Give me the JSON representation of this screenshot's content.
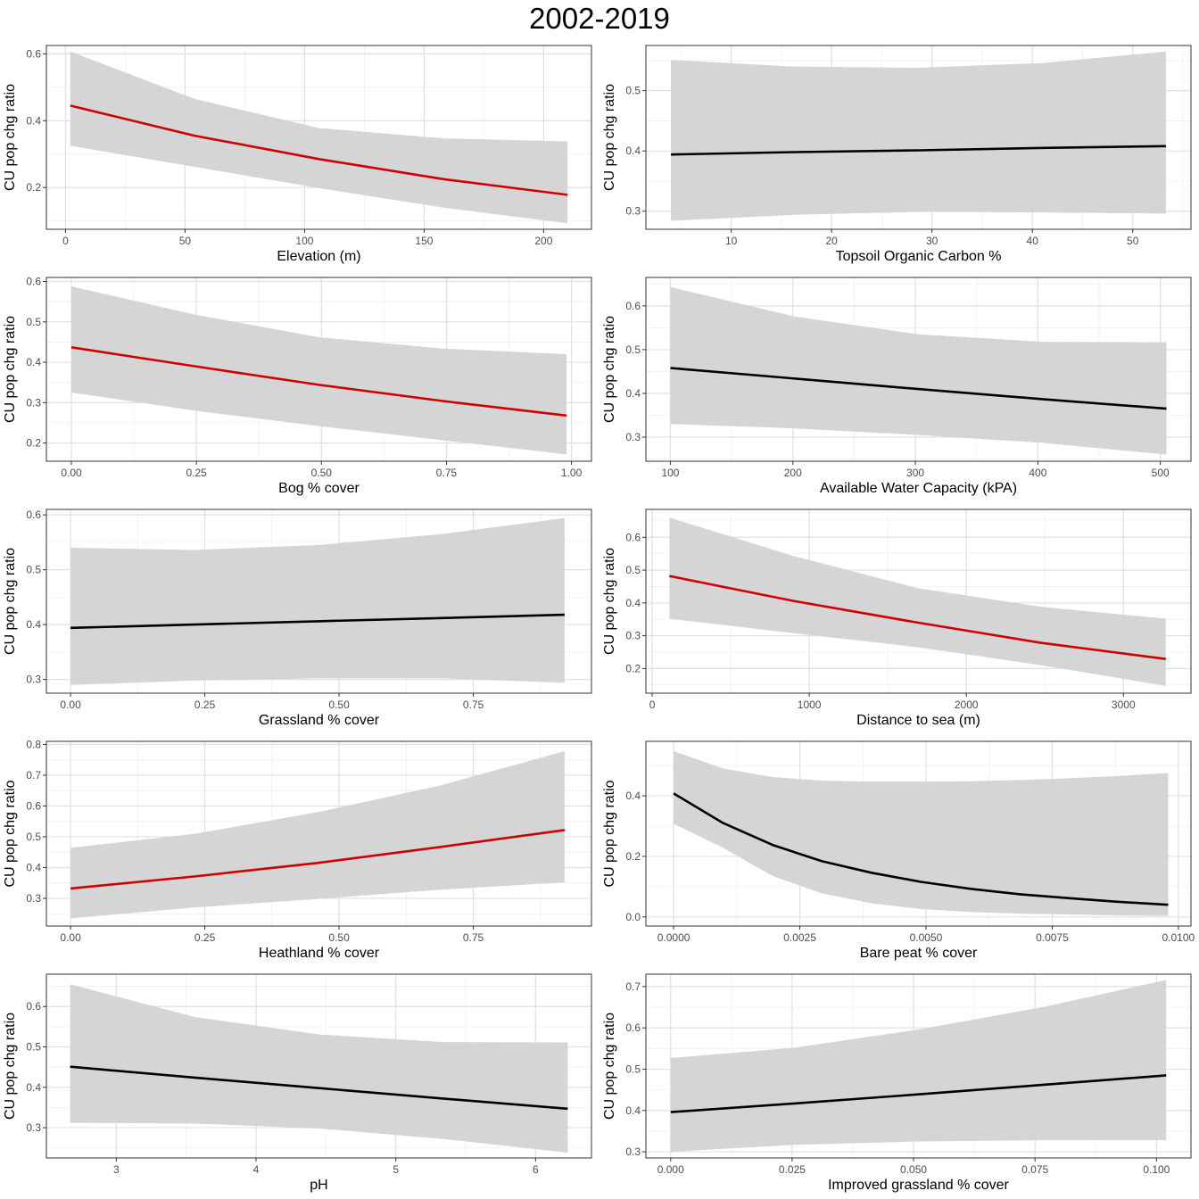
{
  "figure_title": "2002-2019",
  "colors": {
    "significant": "#d00000",
    "nonsignificant": "#000000",
    "ribbon": "#d3d3d3",
    "grid_major": "#e0e0e0",
    "grid_minor": "#f0f0f0",
    "frame": "#333333"
  },
  "chart_data": [
    {
      "type": "line",
      "title": "",
      "xlabel": "Elevation (m)",
      "ylabel": "CU pop chg ratio",
      "color": "#d00000",
      "xlim": [
        -8,
        220
      ],
      "ylim": [
        0.075,
        0.625
      ],
      "xticks": [
        0,
        50,
        100,
        150,
        200
      ],
      "xtick_labels": [
        "0",
        "50",
        "100",
        "150",
        "200"
      ],
      "yticks": [
        0.2,
        0.4,
        0.6
      ],
      "ytick_labels": [
        "0.2",
        "0.4",
        "0.6"
      ],
      "x": [
        2,
        54,
        106,
        158,
        210
      ],
      "fit": [
        0.445,
        0.355,
        0.285,
        0.225,
        0.178
      ],
      "lower": [
        0.325,
        0.262,
        0.198,
        0.14,
        0.093
      ],
      "upper": [
        0.607,
        0.465,
        0.378,
        0.347,
        0.338
      ]
    },
    {
      "type": "line",
      "title": "",
      "xlabel": "Topsoil Organic Carbon %",
      "ylabel": "CU pop chg ratio",
      "color": "#000000",
      "xlim": [
        1.5,
        55.8
      ],
      "ylim": [
        0.27,
        0.575
      ],
      "xticks": [
        10,
        20,
        30,
        40,
        50
      ],
      "xtick_labels": [
        "10",
        "20",
        "30",
        "40",
        "50"
      ],
      "yticks": [
        0.3,
        0.4,
        0.5
      ],
      "ytick_labels": [
        "0.3",
        "0.4",
        "0.5"
      ],
      "x": [
        4,
        16.3,
        28.7,
        41,
        53.3
      ],
      "fit": [
        0.394,
        0.398,
        0.401,
        0.405,
        0.408
      ],
      "lower": [
        0.284,
        0.294,
        0.299,
        0.298,
        0.296
      ],
      "upper": [
        0.551,
        0.54,
        0.538,
        0.546,
        0.565
      ]
    },
    {
      "type": "line",
      "title": "",
      "xlabel": "Bog % cover",
      "ylabel": "CU pop chg ratio",
      "color": "#d00000",
      "xlim": [
        -0.05,
        1.04
      ],
      "ylim": [
        0.155,
        0.61
      ],
      "xticks": [
        0,
        0.25,
        0.5,
        0.75,
        1
      ],
      "xtick_labels": [
        "0.00",
        "0.25",
        "0.50",
        "0.75",
        "1.00"
      ],
      "yticks": [
        0.2,
        0.3,
        0.4,
        0.5,
        0.6
      ],
      "ytick_labels": [
        "0.2",
        "0.3",
        "0.4",
        "0.5",
        "0.6"
      ],
      "x": [
        0,
        0.2475,
        0.495,
        0.7425,
        0.99
      ],
      "fit": [
        0.437,
        0.39,
        0.344,
        0.304,
        0.268
      ],
      "lower": [
        0.325,
        0.28,
        0.242,
        0.207,
        0.172
      ],
      "upper": [
        0.588,
        0.518,
        0.462,
        0.434,
        0.42
      ]
    },
    {
      "type": "line",
      "title": "",
      "xlabel": "Available Water Capacity (kPA)",
      "ylabel": "CU pop chg ratio",
      "color": "#000000",
      "xlim": [
        80,
        525
      ],
      "ylim": [
        0.245,
        0.665
      ],
      "xticks": [
        100,
        200,
        300,
        400,
        500
      ],
      "xtick_labels": [
        "100",
        "200",
        "300",
        "400",
        "500"
      ],
      "yticks": [
        0.3,
        0.4,
        0.5,
        0.6
      ],
      "ytick_labels": [
        "0.3",
        "0.4",
        "0.5",
        "0.6"
      ],
      "x": [
        100,
        201.25,
        302.5,
        403.75,
        505
      ],
      "fit": [
        0.458,
        0.434,
        0.41,
        0.387,
        0.365
      ],
      "lower": [
        0.33,
        0.32,
        0.305,
        0.287,
        0.26
      ],
      "upper": [
        0.643,
        0.576,
        0.535,
        0.518,
        0.517
      ]
    },
    {
      "type": "line",
      "title": "",
      "xlabel": "Grassland % cover",
      "ylabel": "CU pop chg ratio",
      "color": "#000000",
      "xlim": [
        -0.045,
        0.97
      ],
      "ylim": [
        0.275,
        0.61
      ],
      "xticks": [
        0,
        0.25,
        0.5,
        0.75
      ],
      "xtick_labels": [
        "0.00",
        "0.25",
        "0.50",
        "0.75"
      ],
      "yticks": [
        0.3,
        0.4,
        0.5,
        0.6
      ],
      "ytick_labels": [
        "0.3",
        "0.4",
        "0.5",
        "0.6"
      ],
      "x": [
        0,
        0.23,
        0.46,
        0.69,
        0.92
      ],
      "fit": [
        0.394,
        0.4,
        0.406,
        0.412,
        0.418
      ],
      "lower": [
        0.29,
        0.298,
        0.302,
        0.302,
        0.294
      ],
      "upper": [
        0.54,
        0.536,
        0.545,
        0.565,
        0.594
      ]
    },
    {
      "type": "line",
      "title": "",
      "xlabel": "Distance to sea (m)",
      "ylabel": "CU pop chg ratio",
      "color": "#d00000",
      "xlim": [
        -40,
        3430
      ],
      "ylim": [
        0.125,
        0.685
      ],
      "xticks": [
        0,
        1000,
        2000,
        3000
      ],
      "xtick_labels": [
        "0",
        "1000",
        "2000",
        "3000"
      ],
      "yticks": [
        0.2,
        0.3,
        0.4,
        0.5,
        0.6
      ],
      "ytick_labels": [
        "0.2",
        "0.3",
        "0.4",
        "0.5",
        "0.6"
      ],
      "x": [
        110,
        900,
        1690,
        2480,
        3270
      ],
      "fit": [
        0.482,
        0.406,
        0.34,
        0.278,
        0.229
      ],
      "lower": [
        0.352,
        0.308,
        0.265,
        0.21,
        0.147
      ],
      "upper": [
        0.66,
        0.543,
        0.445,
        0.388,
        0.352
      ]
    },
    {
      "type": "line",
      "title": "",
      "xlabel": "Heathland % cover",
      "ylabel": "CU pop chg ratio",
      "color": "#d00000",
      "xlim": [
        -0.045,
        0.97
      ],
      "ylim": [
        0.21,
        0.81
      ],
      "xticks": [
        0,
        0.25,
        0.5,
        0.75
      ],
      "xtick_labels": [
        "0.00",
        "0.25",
        "0.50",
        "0.75"
      ],
      "yticks": [
        0.3,
        0.4,
        0.5,
        0.6,
        0.7,
        0.8
      ],
      "ytick_labels": [
        "0.3",
        "0.4",
        "0.5",
        "0.6",
        "0.7",
        "0.8"
      ],
      "x": [
        0,
        0.23,
        0.46,
        0.69,
        0.92
      ],
      "fit": [
        0.332,
        0.371,
        0.415,
        0.467,
        0.522
      ],
      "lower": [
        0.235,
        0.27,
        0.298,
        0.328,
        0.352
      ],
      "upper": [
        0.464,
        0.509,
        0.58,
        0.667,
        0.778
      ]
    },
    {
      "type": "line",
      "title": "",
      "xlabel": "Bare peat % cover",
      "ylabel": "CU pop chg ratio",
      "color": "#000000",
      "xlim": [
        -0.00055,
        0.01025
      ],
      "ylim": [
        -0.03,
        0.58
      ],
      "xticks": [
        0,
        0.0025,
        0.005,
        0.0075,
        0.01
      ],
      "xtick_labels": [
        "0.0000",
        "0.0025",
        "0.0050",
        "0.0075",
        "0.0100"
      ],
      "yticks": [
        0,
        0.2,
        0.4
      ],
      "ytick_labels": [
        "0.0",
        "0.2",
        "0.4"
      ],
      "x": [
        0,
        0.00098,
        0.00196,
        0.00294,
        0.00392,
        0.0049,
        0.00588,
        0.00686,
        0.00784,
        0.00882,
        0.0098
      ],
      "fit": [
        0.408,
        0.31,
        0.238,
        0.184,
        0.146,
        0.116,
        0.093,
        0.075,
        0.062,
        0.05,
        0.04
      ],
      "lower": [
        0.308,
        0.228,
        0.135,
        0.078,
        0.045,
        0.026,
        0.016,
        0.011,
        0.008,
        0.005,
        0.003
      ],
      "upper": [
        0.548,
        0.49,
        0.462,
        0.45,
        0.447,
        0.447,
        0.448,
        0.452,
        0.458,
        0.466,
        0.475
      ]
    },
    {
      "type": "line",
      "title": "",
      "xlabel": "pH",
      "ylabel": "CU pop chg ratio",
      "color": "#000000",
      "xlim": [
        2.5,
        6.4
      ],
      "ylim": [
        0.225,
        0.68
      ],
      "xticks": [
        3,
        4,
        5,
        6
      ],
      "xtick_labels": [
        "3",
        "4",
        "5",
        "6"
      ],
      "yticks": [
        0.3,
        0.4,
        0.5,
        0.6
      ],
      "ytick_labels": [
        "0.3",
        "0.4",
        "0.5",
        "0.6"
      ],
      "x": [
        2.67,
        3.56,
        4.45,
        5.34,
        6.23
      ],
      "fit": [
        0.451,
        0.424,
        0.398,
        0.372,
        0.347
      ],
      "lower": [
        0.312,
        0.31,
        0.298,
        0.272,
        0.238
      ],
      "upper": [
        0.655,
        0.574,
        0.531,
        0.512,
        0.511
      ]
    },
    {
      "type": "line",
      "title": "",
      "xlabel": "Improved grassland % cover",
      "ylabel": "CU pop chg ratio",
      "color": "#000000",
      "xlim": [
        -0.0051,
        0.1071
      ],
      "ylim": [
        0.285,
        0.73
      ],
      "xticks": [
        0,
        0.025,
        0.05,
        0.075,
        0.1
      ],
      "xtick_labels": [
        "0.000",
        "0.025",
        "0.050",
        "0.075",
        "0.100"
      ],
      "yticks": [
        0.3,
        0.4,
        0.5,
        0.6,
        0.7
      ],
      "ytick_labels": [
        "0.3",
        "0.4",
        "0.5",
        "0.6",
        "0.7"
      ],
      "x": [
        0,
        0.0255,
        0.051,
        0.0765,
        0.102
      ],
      "fit": [
        0.396,
        0.417,
        0.439,
        0.462,
        0.485
      ],
      "lower": [
        0.3,
        0.317,
        0.325,
        0.328,
        0.328
      ],
      "upper": [
        0.527,
        0.552,
        0.596,
        0.65,
        0.716
      ]
    }
  ]
}
